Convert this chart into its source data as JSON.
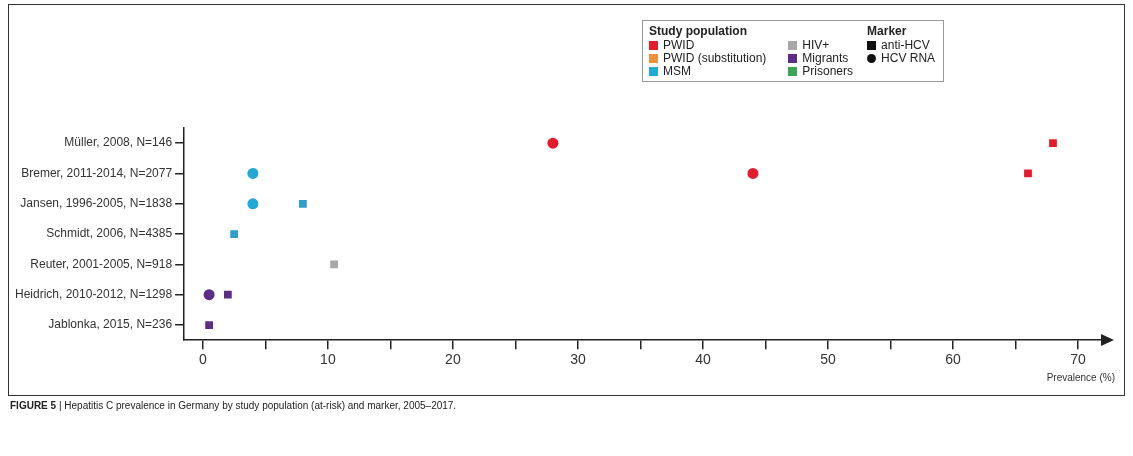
{
  "chart_data": {
    "type": "scatter",
    "orientation": "horizontal",
    "categories": [
      "Müller, 2008, N=146",
      "Bremer, 2011-2014, N=2077",
      "Jansen, 1996-2005, N=1838",
      "Schmidt, 2006, N=4385",
      "Reuter, 2001-2005, N=918",
      "Heidrich, 2010-2012, N=1298",
      "Jablonka, 2015, N=236"
    ],
    "series": [
      {
        "name": "PWID",
        "color": "#e31b2b",
        "marker": "square",
        "values": [
          68,
          66,
          null,
          null,
          null,
          null,
          null
        ]
      },
      {
        "color": "#e31b2b",
        "marker": "circle",
        "values": [
          28,
          44,
          null,
          null,
          null,
          null,
          null
        ]
      },
      {
        "name": "PWID (substitution)",
        "color": "#f0913a",
        "marker": "square",
        "values": [
          null,
          null,
          null,
          null,
          null,
          null,
          null
        ]
      },
      {
        "name": "MSM",
        "color": "#22a9d6",
        "marker": "circle",
        "values": [
          null,
          4,
          4,
          null,
          null,
          null,
          null
        ]
      },
      {
        "color": "#2f9fc9",
        "marker": "square",
        "values": [
          null,
          null,
          8,
          2.5,
          null,
          null,
          null
        ]
      },
      {
        "name": "HIV+",
        "color": "#a8a8a8",
        "marker": "square",
        "values": [
          null,
          null,
          null,
          null,
          10.5,
          null,
          null
        ]
      },
      {
        "name": "Migrants",
        "color": "#5b2d86",
        "marker": "square",
        "values": [
          null,
          null,
          null,
          null,
          null,
          2,
          0.5
        ]
      },
      {
        "color": "#5b2d86",
        "marker": "circle",
        "values": [
          null,
          null,
          null,
          null,
          null,
          0.5,
          null
        ]
      },
      {
        "name": "Prisoners",
        "color": "#3aa655",
        "marker": "square",
        "values": [
          null,
          null,
          null,
          null,
          null,
          null,
          null
        ]
      }
    ],
    "legend_title": "Study population",
    "legend": "top right",
    "xlabel": "Prevalence (%)",
    "xlim": [
      -1.5,
      72
    ],
    "xticks": [
      0,
      {
        "value": 5,
        "label": null
      },
      10,
      {
        "value": 15,
        "label": null
      },
      20,
      {
        "value": 25,
        "label": null
      },
      30,
      {
        "value": 35,
        "label": null
      },
      40,
      {
        "value": 45,
        "label": null
      },
      50,
      {
        "value": 55,
        "label": null
      },
      60,
      {
        "value": 65,
        "label": null
      },
      70
    ],
    "grid": false,
    "annotations": [
      "Marker",
      "anti-HCV",
      "HCV RNA",
      "FIGURE 5 | Hepatitis C prevalence in Germany by study population (at-risk) and marker, 2005–2017."
    ]
  }
}
